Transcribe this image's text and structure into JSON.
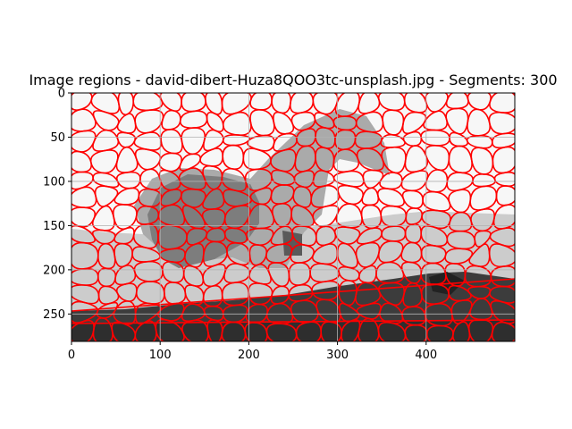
{
  "chart_data": {
    "type": "heatmap",
    "title": "Image regions - david-dibert-Huza8QOO3tc-unsplash.jpg - Segments: 300",
    "xlabel": "",
    "ylabel": "",
    "xlim": [
      0,
      500
    ],
    "ylim": [
      281,
      0
    ],
    "x_ticks": [
      0,
      100,
      200,
      300,
      400
    ],
    "y_ticks": [
      0,
      50,
      100,
      150,
      200,
      250
    ],
    "grid": true,
    "segments": 300,
    "colors": {
      "boundary": "#ff0000",
      "sky": "#f7f7f7",
      "light_gray": "#c9c9c9",
      "mid_gray": "#a8a8a8",
      "dark_gray": "#7a7a7a",
      "ground": "#3a3a3a",
      "grid": "#b0b0b0"
    }
  }
}
